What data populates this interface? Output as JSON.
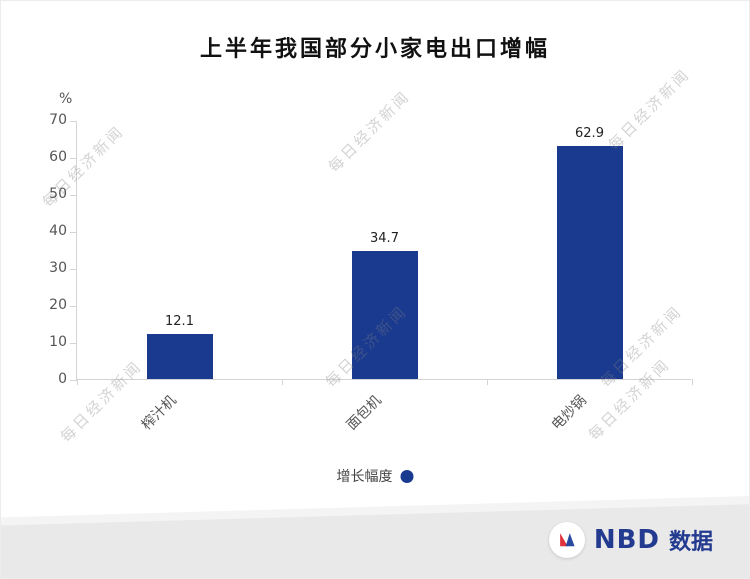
{
  "chart_data": {
    "type": "bar",
    "title": "上半年我国部分小家电出口增幅",
    "categories": [
      "榨汁机",
      "面包机",
      "电炒锅"
    ],
    "values": [
      12.1,
      34.7,
      62.9
    ],
    "value_labels": [
      "12.1",
      "34.7",
      "62.9"
    ],
    "series_name": "增长幅度",
    "xlabel": "",
    "ylabel": "%",
    "ylim": [
      0,
      70
    ],
    "yticks": [
      0,
      10,
      20,
      30,
      40,
      50,
      60,
      70
    ],
    "grid": false,
    "legend_position": "bottom",
    "bar_color": "#1a3a8f"
  },
  "legend": {
    "label": "增长幅度"
  },
  "watermark": {
    "text": "每日经济新闻"
  },
  "footer": {
    "brand": "NBD",
    "brand_suffix": "数据",
    "brand_color": "#223a8f",
    "logo_red": "#e0333c",
    "logo_blue": "#2a4aa2"
  }
}
